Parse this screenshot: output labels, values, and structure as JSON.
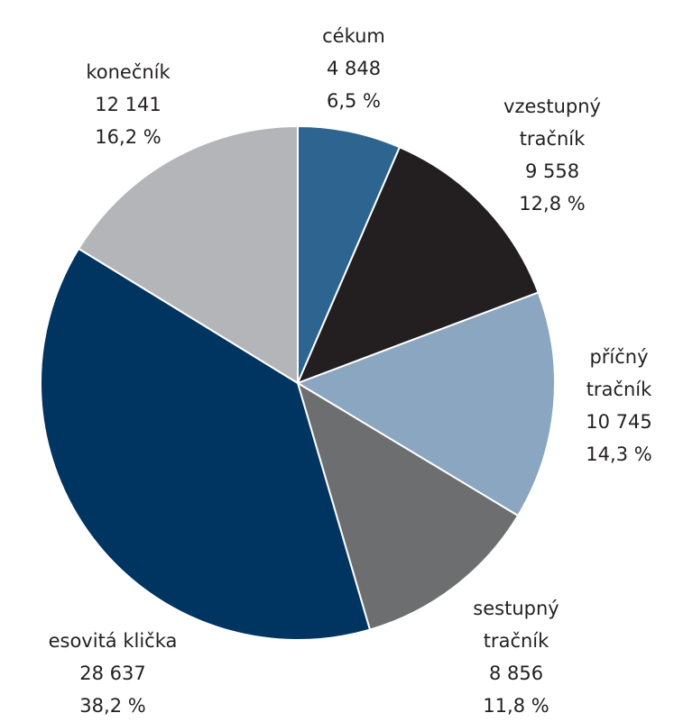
{
  "chart_data": {
    "type": "pie",
    "categories": [
      "cékum",
      "vzestupný tračník",
      "příčný tračník",
      "sestupný tračník",
      "esovitá klička",
      "konečník"
    ],
    "values": [
      4848,
      9558,
      10745,
      8856,
      28637,
      12141
    ],
    "value_labels": [
      "4 848",
      "9 558",
      "10 745",
      "8 856",
      "28 637",
      "12 141"
    ],
    "percentages": [
      6.5,
      12.8,
      14.3,
      11.8,
      38.2,
      16.2
    ],
    "percentage_labels": [
      "6,5 %",
      "12,8 %",
      "14,3 %",
      "11,8 %",
      "38,2 %",
      "16,2 %"
    ],
    "colors": [
      "#2e6490",
      "#231f20",
      "#8aa6c1",
      "#6d6e70",
      "#003461",
      "#b3b5b8"
    ]
  }
}
